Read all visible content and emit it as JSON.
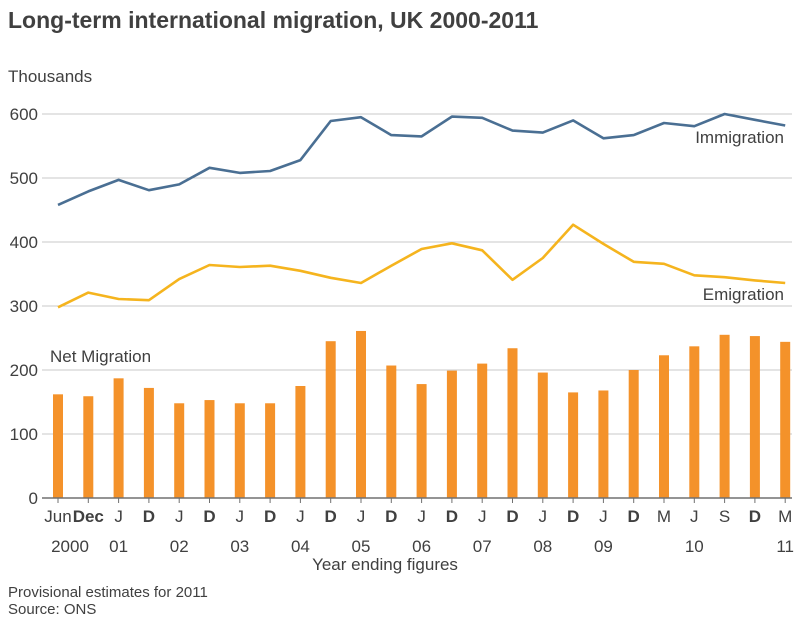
{
  "chart_data": {
    "type": "bar+line",
    "title": "Long-term international migration, UK 2000-2011",
    "ylabel": "Thousands",
    "xlabel": "Year ending figures",
    "ylim": [
      0,
      600
    ],
    "yticks": [
      0,
      100,
      200,
      300,
      400,
      500,
      600
    ],
    "grid": true,
    "x_tick_labels": [
      {
        "label": "Jun",
        "bold": false,
        "year": "2000"
      },
      {
        "label": "Dec",
        "bold": true,
        "year": ""
      },
      {
        "label": "J",
        "bold": false,
        "year": "01"
      },
      {
        "label": "D",
        "bold": true,
        "year": ""
      },
      {
        "label": "J",
        "bold": false,
        "year": "02"
      },
      {
        "label": "D",
        "bold": true,
        "year": ""
      },
      {
        "label": "J",
        "bold": false,
        "year": "03"
      },
      {
        "label": "D",
        "bold": true,
        "year": ""
      },
      {
        "label": "J",
        "bold": false,
        "year": "04"
      },
      {
        "label": "D",
        "bold": true,
        "year": ""
      },
      {
        "label": "J",
        "bold": false,
        "year": "05"
      },
      {
        "label": "D",
        "bold": true,
        "year": ""
      },
      {
        "label": "J",
        "bold": false,
        "year": "06"
      },
      {
        "label": "D",
        "bold": true,
        "year": ""
      },
      {
        "label": "J",
        "bold": false,
        "year": "07"
      },
      {
        "label": "D",
        "bold": true,
        "year": ""
      },
      {
        "label": "J",
        "bold": false,
        "year": "08"
      },
      {
        "label": "D",
        "bold": true,
        "year": ""
      },
      {
        "label": "J",
        "bold": false,
        "year": "09"
      },
      {
        "label": "D",
        "bold": true,
        "year": ""
      },
      {
        "label": "M",
        "bold": false,
        "year": ""
      },
      {
        "label": "J",
        "bold": false,
        "year": "10"
      },
      {
        "label": "S",
        "bold": false,
        "year": ""
      },
      {
        "label": "D",
        "bold": true,
        "year": ""
      },
      {
        "label": "M",
        "bold": false,
        "year": "11"
      }
    ],
    "series": [
      {
        "name": "Immigration",
        "type": "line",
        "color": "#4a6f93",
        "values": [
          458,
          479,
          497,
          481,
          490,
          516,
          508,
          511,
          528,
          589,
          595,
          567,
          565,
          596,
          594,
          574,
          571,
          590,
          562,
          567,
          586,
          581,
          600,
          591,
          582
        ]
      },
      {
        "name": "Emigration",
        "type": "line",
        "color": "#f5b41e",
        "values": [
          298,
          321,
          311,
          309,
          342,
          364,
          361,
          363,
          355,
          344,
          336,
          363,
          389,
          398,
          387,
          341,
          375,
          427,
          397,
          369,
          366,
          348,
          345,
          340,
          336
        ]
      },
      {
        "name": "Net Migration",
        "type": "bar",
        "color": "#f4922a",
        "values": [
          162,
          159,
          187,
          172,
          148,
          153,
          148,
          148,
          175,
          245,
          261,
          207,
          178,
          199,
          210,
          234,
          196,
          165,
          168,
          200,
          223,
          237,
          255,
          253,
          244
        ]
      }
    ]
  },
  "footer": {
    "note": "Provisional estimates for 2011",
    "source": "Source: ONS"
  }
}
